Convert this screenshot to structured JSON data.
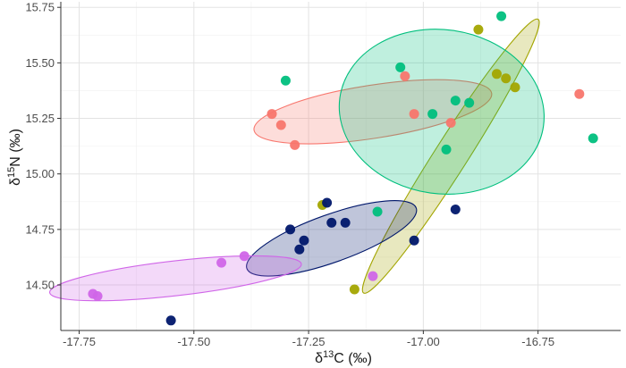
{
  "chart_data": {
    "type": "scatter",
    "xlabel": {
      "delta": "δ",
      "sup": "13",
      "rest": "C (‰)"
    },
    "ylabel": {
      "delta": "δ",
      "sup": "15",
      "rest": "N (‰)"
    },
    "xlim": [
      -17.79,
      -16.57
    ],
    "ylim": [
      14.295,
      15.775
    ],
    "xticks": [
      -17.75,
      -17.5,
      -17.25,
      -17.0,
      -16.75
    ],
    "xtick_labels": [
      "-17.75",
      "-17.50",
      "-17.25",
      "-17.00",
      "-16.75"
    ],
    "yticks": [
      14.5,
      14.75,
      15.0,
      15.25,
      15.5,
      15.75
    ],
    "ytick_labels": [
      "14.50",
      "14.75",
      "15.00",
      "15.25",
      "15.50",
      "15.75"
    ],
    "grid": true,
    "legend": "none",
    "series": [
      {
        "color": "#F8766D",
        "points": [
          [
            -17.33,
            15.27
          ],
          [
            -17.31,
            15.22
          ],
          [
            -17.28,
            15.13
          ],
          [
            -17.04,
            15.44
          ],
          [
            -17.02,
            15.27
          ],
          [
            -16.94,
            15.23
          ],
          [
            -16.66,
            15.36
          ]
        ],
        "ellipse": {
          "cx": -17.11,
          "cy": 15.28,
          "rx": 0.262,
          "ry": 0.058,
          "angle_deg": 8.8
        }
      },
      {
        "color": "#A3A500",
        "points": [
          [
            -17.22,
            14.86
          ],
          [
            -17.15,
            14.48
          ],
          [
            -16.88,
            15.65
          ],
          [
            -16.84,
            15.45
          ],
          [
            -16.82,
            15.43
          ],
          [
            -16.8,
            15.39
          ]
        ],
        "ellipse": {
          "cx": -16.94,
          "cy": 15.08,
          "rx": 0.354,
          "ry": 0.036,
          "angle_deg": 57.5
        }
      },
      {
        "color": "#00BF7D",
        "points": [
          [
            -17.3,
            15.42
          ],
          [
            -17.1,
            14.83
          ],
          [
            -17.05,
            15.48
          ],
          [
            -16.98,
            15.27
          ],
          [
            -16.95,
            15.11
          ],
          [
            -16.93,
            15.33
          ],
          [
            -16.9,
            15.32
          ],
          [
            -16.83,
            15.71
          ],
          [
            -16.63,
            15.16
          ]
        ],
        "ellipse": {
          "cx": -16.96,
          "cy": 15.28,
          "rx": 0.224,
          "ry": 0.179,
          "angle_deg": -7.9
        }
      },
      {
        "color": "#00176B",
        "points": [
          [
            -17.55,
            14.34
          ],
          [
            -17.29,
            14.75
          ],
          [
            -17.27,
            14.66
          ],
          [
            -17.26,
            14.7
          ],
          [
            -17.21,
            14.87
          ],
          [
            -17.2,
            14.78
          ],
          [
            -17.17,
            14.78
          ],
          [
            -17.02,
            14.7
          ],
          [
            -16.93,
            14.84
          ]
        ],
        "ellipse": {
          "cx": -17.2,
          "cy": 14.71,
          "rx": 0.196,
          "ry": 0.052,
          "angle_deg": 19.7
        }
      },
      {
        "color": "#D066E8",
        "points": [
          [
            -17.72,
            14.46
          ],
          [
            -17.71,
            14.45
          ],
          [
            -17.44,
            14.6
          ],
          [
            -17.39,
            14.63
          ],
          [
            -17.11,
            14.54
          ]
        ],
        "ellipse": {
          "cx": -17.54,
          "cy": 14.53,
          "rx": 0.276,
          "ry": 0.038,
          "angle_deg": 6.5
        }
      }
    ]
  }
}
